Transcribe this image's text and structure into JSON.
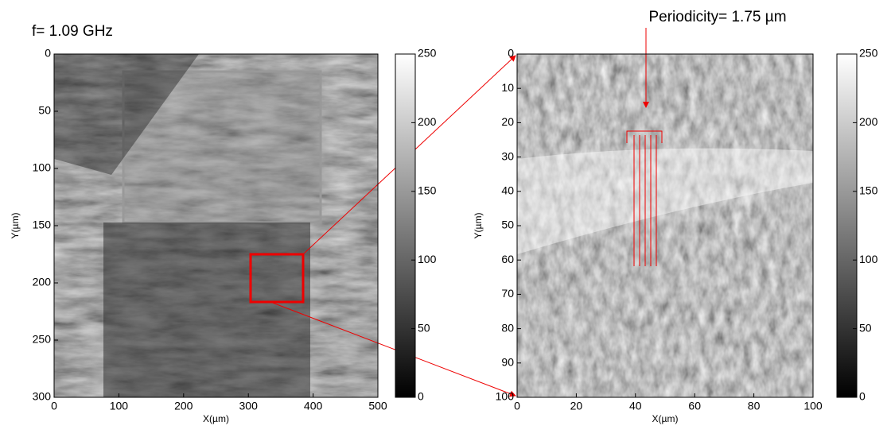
{
  "chart_data": [
    {
      "type": "image",
      "annotation": "f= 1.09 GHz",
      "xlabel": "X(µm)",
      "ylabel": "Y(µm)",
      "xlim": [
        0,
        500
      ],
      "xticks": [
        0,
        100,
        200,
        300,
        400,
        500
      ],
      "ylim": [
        0,
        300
      ],
      "yticks": [
        0,
        50,
        100,
        150,
        200,
        250,
        300
      ],
      "y_inverted": true,
      "colormap": "gray",
      "clim": [
        0,
        250
      ],
      "cticks": [
        0,
        50,
        100,
        150,
        200,
        250
      ]
    },
    {
      "type": "image",
      "annotation": "Periodicity= 1.75 µm",
      "xlabel": "X(µm)",
      "ylabel": "Y(µm)",
      "xlim": [
        0,
        100
      ],
      "xticks": [
        0,
        20,
        40,
        60,
        80,
        100
      ],
      "ylim": [
        0,
        100
      ],
      "yticks": [
        0,
        10,
        20,
        30,
        40,
        50,
        60,
        70,
        80,
        90,
        100
      ],
      "y_inverted": true,
      "colormap": "gray",
      "clim": [
        0,
        250
      ],
      "cticks": [
        0,
        50,
        100,
        150,
        200,
        250
      ]
    }
  ]
}
